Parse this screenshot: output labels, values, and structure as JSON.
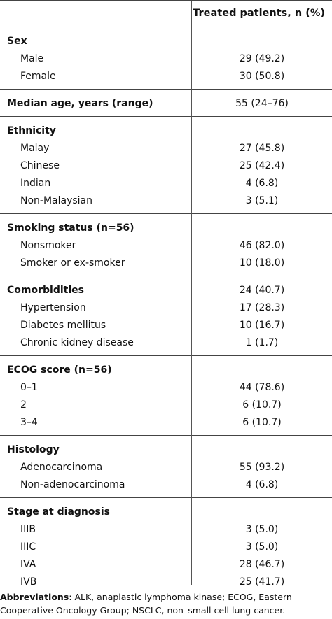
{
  "header": {
    "column_label": "Treated patients, n (%)"
  },
  "sections": [
    {
      "id": "sex",
      "label": "Sex",
      "label_value": "",
      "rows": [
        {
          "label": "Male",
          "value": "29 (49.2)"
        },
        {
          "label": "Female",
          "value": "30 (50.8)"
        }
      ]
    },
    {
      "id": "median-age",
      "label": "Median age, years (range)",
      "label_value": "55 (24–76)",
      "rows": []
    },
    {
      "id": "ethnicity",
      "label": "Ethnicity",
      "label_value": "",
      "rows": [
        {
          "label": "Malay",
          "value": "27 (45.8)"
        },
        {
          "label": "Chinese",
          "value": "25 (42.4)"
        },
        {
          "label": "Indian",
          "value": "4 (6.8)"
        },
        {
          "label": "Non-Malaysian",
          "value": "3 (5.1)"
        }
      ]
    },
    {
      "id": "smoking",
      "label": "Smoking status (n=56)",
      "label_value": "",
      "rows": [
        {
          "label": "Nonsmoker",
          "value": "46 (82.0)"
        },
        {
          "label": "Smoker or ex-smoker",
          "value": "10 (18.0)"
        }
      ]
    },
    {
      "id": "comorbidities",
      "label": "Comorbidities",
      "label_value": "24 (40.7)",
      "rows": [
        {
          "label": "Hypertension",
          "value": "17 (28.3)"
        },
        {
          "label": "Diabetes mellitus",
          "value": "10 (16.7)"
        },
        {
          "label": "Chronic kidney disease",
          "value": "1 (1.7)"
        }
      ]
    },
    {
      "id": "ecog",
      "label": "ECOG score (n=56)",
      "label_value": "",
      "rows": [
        {
          "label": "0–1",
          "value": "44 (78.6)"
        },
        {
          "label": "2",
          "value": "6 (10.7)"
        },
        {
          "label": "3–4",
          "value": "6 (10.7)"
        }
      ]
    },
    {
      "id": "histology",
      "label": "Histology",
      "label_value": "",
      "rows": [
        {
          "label": "Adenocarcinoma",
          "value": "55 (93.2)"
        },
        {
          "label": "Non-adenocarcinoma",
          "value": "4 (6.8)"
        }
      ]
    },
    {
      "id": "stage",
      "label": "Stage at diagnosis",
      "label_value": "",
      "rows": [
        {
          "label": "IIIB",
          "value": "3 (5.0)"
        },
        {
          "label": "IIIC",
          "value": "3 (5.0)"
        },
        {
          "label": "IVA",
          "value": "28 (46.7)"
        },
        {
          "label": "IVB",
          "value": "25 (41.7)"
        }
      ]
    }
  ],
  "footnote": {
    "heading": "Abbreviations",
    "text": ": ALK, anaplastic lymphoma kinase; ECOG, Eastern Cooperative Oncology Group; NSCLC, non–small cell lung cancer."
  }
}
